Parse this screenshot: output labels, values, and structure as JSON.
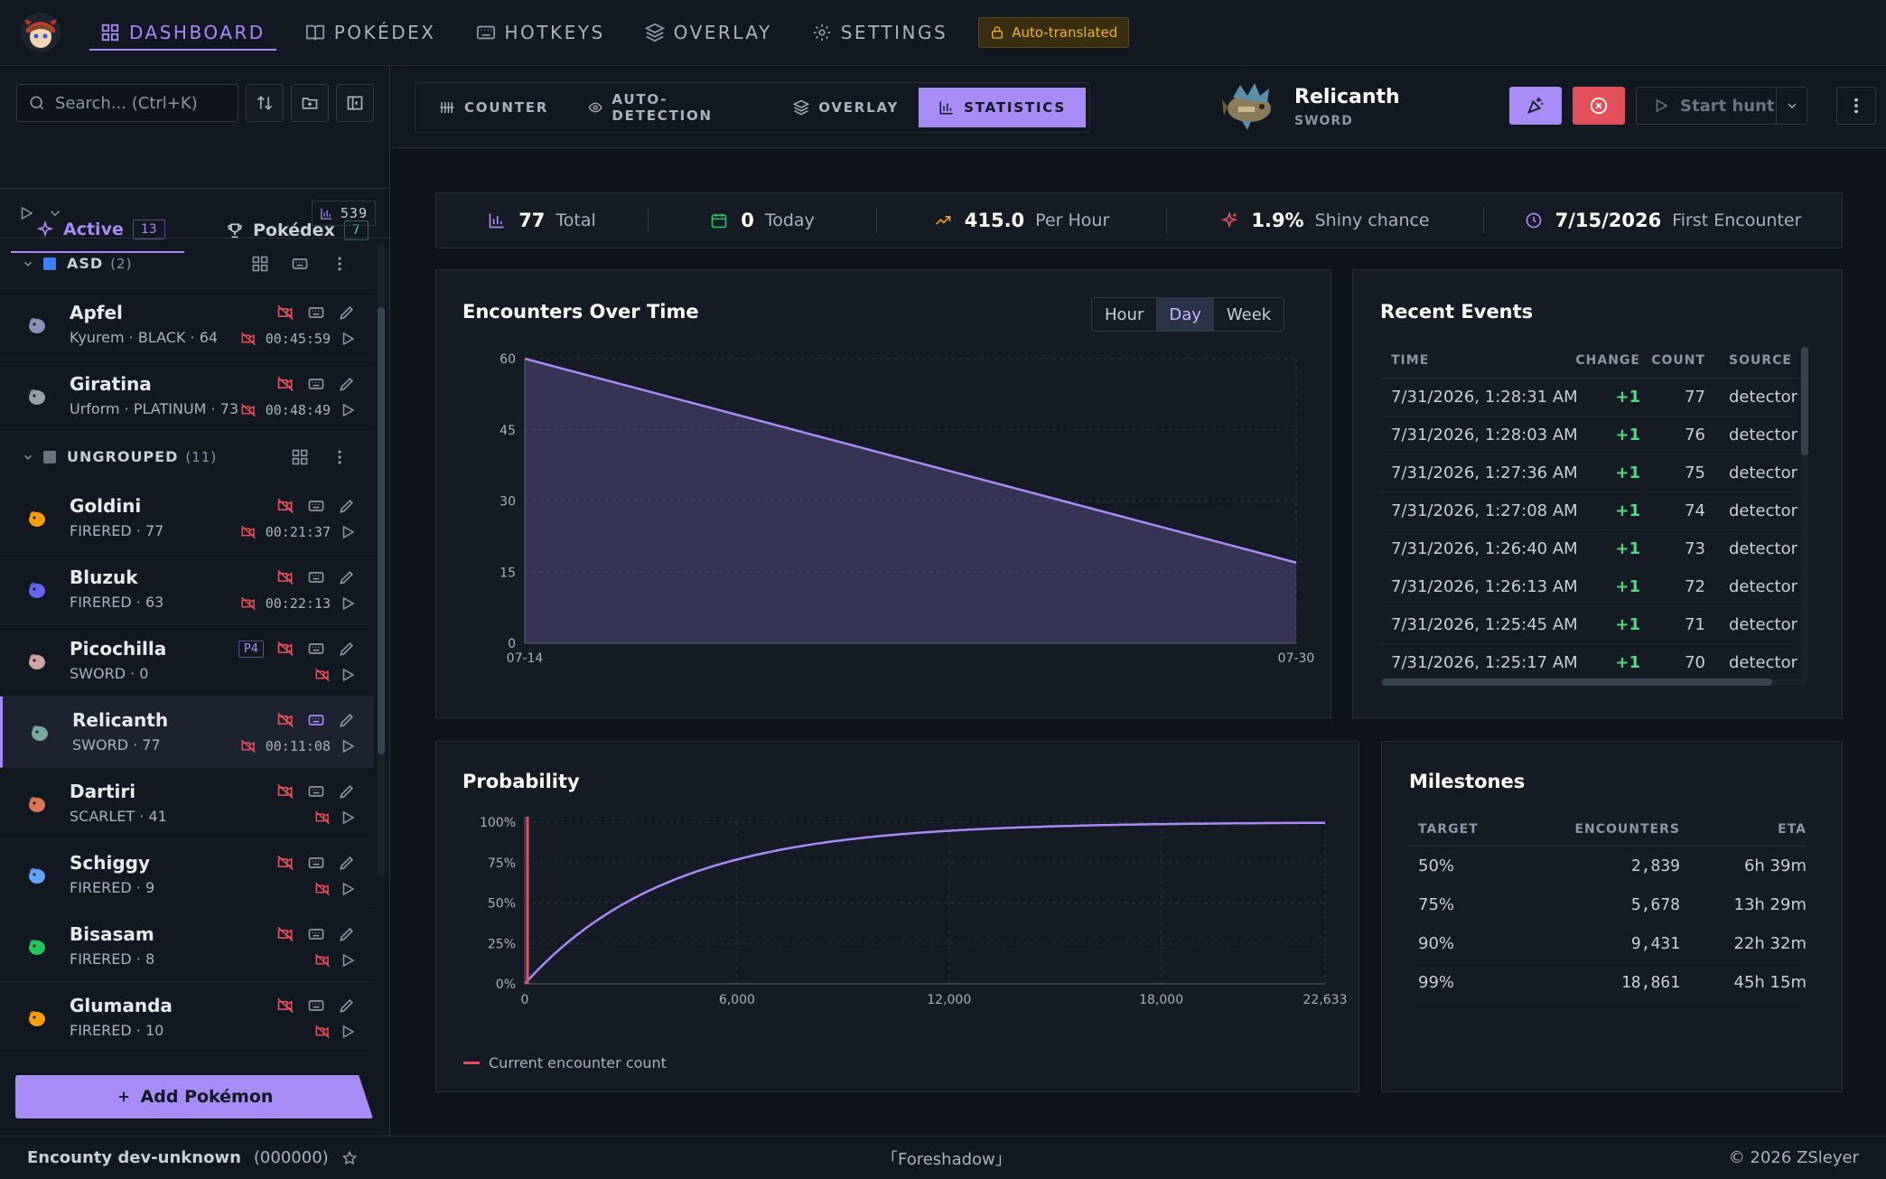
{
  "topnav": {
    "items": [
      {
        "label": "DASHBOARD",
        "icon": "grid-icon",
        "active": true
      },
      {
        "label": "POKÉDEX",
        "icon": "book-icon"
      },
      {
        "label": "HOTKEYS",
        "icon": "keyboard-icon"
      },
      {
        "label": "OVERLAY",
        "icon": "layers-icon"
      },
      {
        "label": "SETTINGS",
        "icon": "gear-icon"
      }
    ],
    "autotranslated": "Auto-translated"
  },
  "sidebar": {
    "search_placeholder": "Search... (Ctrl+K)",
    "tabs": {
      "active": {
        "label": "Active",
        "count": "13"
      },
      "pokedex": {
        "label": "Pokédex",
        "count": "7"
      }
    },
    "total_count": "539",
    "groups": [
      {
        "name": "ASD",
        "count": "(2)",
        "color": "#3b82f6",
        "hunts": [
          {
            "name": "Apfel",
            "sub": "Kyurem · BLACK · 64",
            "timer": "00:45:59",
            "color": "#8a93b5"
          },
          {
            "name": "Giratina",
            "sub": "Urform · PLATINUM · 73",
            "timer": "00:48:49",
            "color": "#9aa0a6"
          }
        ]
      },
      {
        "name": "UNGROUPED",
        "count": "(11)",
        "color": "#6b7280",
        "hunts": [
          {
            "name": "Goldini",
            "sub": "FIRERED · 77",
            "timer": "00:21:37",
            "color": "#f59e0b"
          },
          {
            "name": "Bluzuk",
            "sub": "FIRERED · 63",
            "timer": "00:22:13",
            "color": "#6366f1"
          },
          {
            "name": "Picochilla",
            "sub": "SWORD · 0",
            "timer": "",
            "tag": "P4",
            "color": "#d1a3a3"
          },
          {
            "name": "Relicanth",
            "sub": "SWORD · 77",
            "timer": "00:11:08",
            "selected": true,
            "color": "#7aa8a0"
          },
          {
            "name": "Dartiri",
            "sub": "SCARLET · 41",
            "timer": "",
            "color": "#d97757"
          },
          {
            "name": "Schiggy",
            "sub": "FIRERED · 9",
            "timer": "",
            "color": "#60a5fa"
          },
          {
            "name": "Bisasam",
            "sub": "FIRERED · 8",
            "timer": "",
            "color": "#22c55e"
          },
          {
            "name": "Glumanda",
            "sub": "FIRERED · 10",
            "timer": "",
            "color": "#f59e0b"
          }
        ]
      }
    ],
    "add_button": "Add Pokémon"
  },
  "footer": {
    "app_name": "Encounty dev-unknown",
    "version": "(000000)",
    "quote": "「Foreshadow」",
    "copyright": "© 2026 ZSleyer"
  },
  "header": {
    "subtabs": [
      {
        "label": "COUNTER",
        "icon": "counter-icon"
      },
      {
        "label": "AUTO-DETECTION",
        "icon": "eye-icon"
      },
      {
        "label": "OVERLAY",
        "icon": "layers-icon"
      },
      {
        "label": "STATISTICS",
        "icon": "bar-chart-icon",
        "active": true
      }
    ],
    "pokemon_name": "Relicanth",
    "game": "SWORD",
    "start_hunt": "Start hunt"
  },
  "stats": [
    {
      "value": "77",
      "label": "Total",
      "icon": "bar-chart-icon",
      "color": "#a98bf5"
    },
    {
      "value": "0",
      "label": "Today",
      "icon": "calendar-icon",
      "color": "#22c55e"
    },
    {
      "value": "415.0",
      "label": "Per Hour",
      "icon": "trend-up-icon",
      "color": "#f59e0b"
    },
    {
      "value": "1.9%",
      "label": "Shiny chance",
      "icon": "sparkle-icon",
      "color": "#e2515b"
    },
    {
      "value": "7/15/2026",
      "label": "First Encounter",
      "icon": "clock-icon",
      "color": "#a98bf5"
    }
  ],
  "encounters_chart": {
    "title": "Encounters Over Time",
    "ranges": [
      "Hour",
      "Day",
      "Week"
    ],
    "active_range": "Day"
  },
  "probability_chart": {
    "title": "Probability",
    "legend": "Current encounter count"
  },
  "chart_data": [
    {
      "type": "area",
      "title": "Encounters Over Time",
      "x": [
        "07-14",
        "07-30"
      ],
      "series": [
        {
          "values": [
            60,
            17
          ]
        }
      ],
      "yticks": [
        0,
        15,
        30,
        45,
        60
      ],
      "ylim": [
        0,
        60
      ],
      "grid": true
    },
    {
      "type": "line",
      "title": "Probability",
      "xlim": [
        0,
        22633
      ],
      "xticks": [
        0,
        6000,
        12000,
        18000,
        22633
      ],
      "yticks": [
        "0%",
        "25%",
        "50%",
        "75%",
        "100%"
      ],
      "ylim": [
        0,
        1
      ],
      "odds": 4096,
      "current_encounters": 77,
      "grid": true,
      "legend": [
        {
          "name": "Current encounter count",
          "color": "#e2515b"
        }
      ]
    }
  ],
  "recent_events": {
    "title": "Recent Events",
    "headers": [
      "TIME",
      "CHANGE",
      "COUNT",
      "SOURCE"
    ],
    "rows": [
      {
        "time": "7/31/2026, 1:28:31 AM",
        "change": "+1",
        "count": "77",
        "source": "detector"
      },
      {
        "time": "7/31/2026, 1:28:03 AM",
        "change": "+1",
        "count": "76",
        "source": "detector"
      },
      {
        "time": "7/31/2026, 1:27:36 AM",
        "change": "+1",
        "count": "75",
        "source": "detector"
      },
      {
        "time": "7/31/2026, 1:27:08 AM",
        "change": "+1",
        "count": "74",
        "source": "detector"
      },
      {
        "time": "7/31/2026, 1:26:40 AM",
        "change": "+1",
        "count": "73",
        "source": "detector"
      },
      {
        "time": "7/31/2026, 1:26:13 AM",
        "change": "+1",
        "count": "72",
        "source": "detector"
      },
      {
        "time": "7/31/2026, 1:25:45 AM",
        "change": "+1",
        "count": "71",
        "source": "detector"
      },
      {
        "time": "7/31/2026, 1:25:17 AM",
        "change": "+1",
        "count": "70",
        "source": "detector"
      }
    ]
  },
  "milestones": {
    "title": "Milestones",
    "headers": [
      "TARGET",
      "ENCOUNTERS",
      "ETA"
    ],
    "rows": [
      {
        "target": "50%",
        "encounters": "2,839",
        "eta": "6h 39m"
      },
      {
        "target": "75%",
        "encounters": "5,678",
        "eta": "13h 29m"
      },
      {
        "target": "90%",
        "encounters": "9,431",
        "eta": "22h 32m"
      },
      {
        "target": "99%",
        "encounters": "18,861",
        "eta": "45h 15m"
      }
    ]
  }
}
